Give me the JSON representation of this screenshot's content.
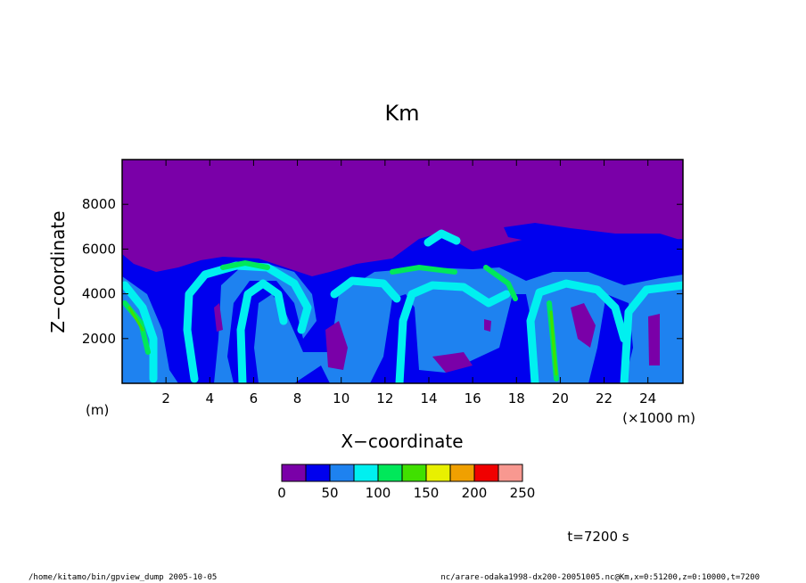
{
  "chart_data": {
    "type": "heatmap",
    "title": "Km",
    "xlabel": "X−coordinate",
    "ylabel": "Z−coordinate",
    "x_unit_label": "(m)",
    "x_scale_label": "(×1000 m)",
    "xlim": [
      0,
      25.6
    ],
    "ylim": [
      0,
      10000
    ],
    "x_ticks": [
      2,
      4,
      6,
      8,
      10,
      12,
      14,
      16,
      18,
      20,
      22,
      24
    ],
    "y_ticks": [
      2000,
      4000,
      6000,
      8000
    ],
    "colorbar": {
      "levels": [
        0,
        25,
        50,
        75,
        100,
        125,
        150,
        175,
        200,
        225,
        250
      ],
      "tick_labels": [
        "0",
        "50",
        "100",
        "150",
        "200",
        "250"
      ],
      "tick_values": [
        0,
        50,
        100,
        150,
        200,
        250
      ],
      "colors": [
        "#7a00a8",
        "#0000ee",
        "#1e82f0",
        "#00f0f0",
        "#00e85a",
        "#40e000",
        "#e8f000",
        "#f0a000",
        "#f00000",
        "#f89890"
      ]
    },
    "time_label": "t=7200 s",
    "features": [
      {
        "kind": "background",
        "level": 0
      },
      {
        "kind": "band",
        "x": [
          0,
          25.6
        ],
        "z": [
          0,
          5200
        ],
        "level": 1
      },
      {
        "kind": "plume",
        "x": 0.5,
        "z_top": 3200,
        "level": 3
      },
      {
        "kind": "roll",
        "x": 5.5,
        "z_top": 5400,
        "level": 3
      },
      {
        "kind": "roll",
        "x": 11.0,
        "z_top": 4600,
        "level": 2
      },
      {
        "kind": "roll",
        "x": 14.5,
        "z_top": 5100,
        "level": 3
      },
      {
        "kind": "roll",
        "x": 18.5,
        "z_top": 5000,
        "level": 3
      },
      {
        "kind": "roll",
        "x": 24.0,
        "z_top": 4700,
        "level": 3
      },
      {
        "kind": "updraft",
        "x": 5.8,
        "z_top": 5200,
        "level": 4
      },
      {
        "kind": "updraft",
        "x": 19.6,
        "z_top": 4600,
        "level": 5
      },
      {
        "kind": "updraft",
        "x": 1.0,
        "z_top": 3000,
        "level": 5
      }
    ]
  },
  "footer": {
    "left": "/home/kitamo/bin/gpview_dump  2005-10-05",
    "right": "nc/arare-odaka1998-dx200-20051005.nc@Km,x=0:51200,z=0:10000,t=7200"
  }
}
